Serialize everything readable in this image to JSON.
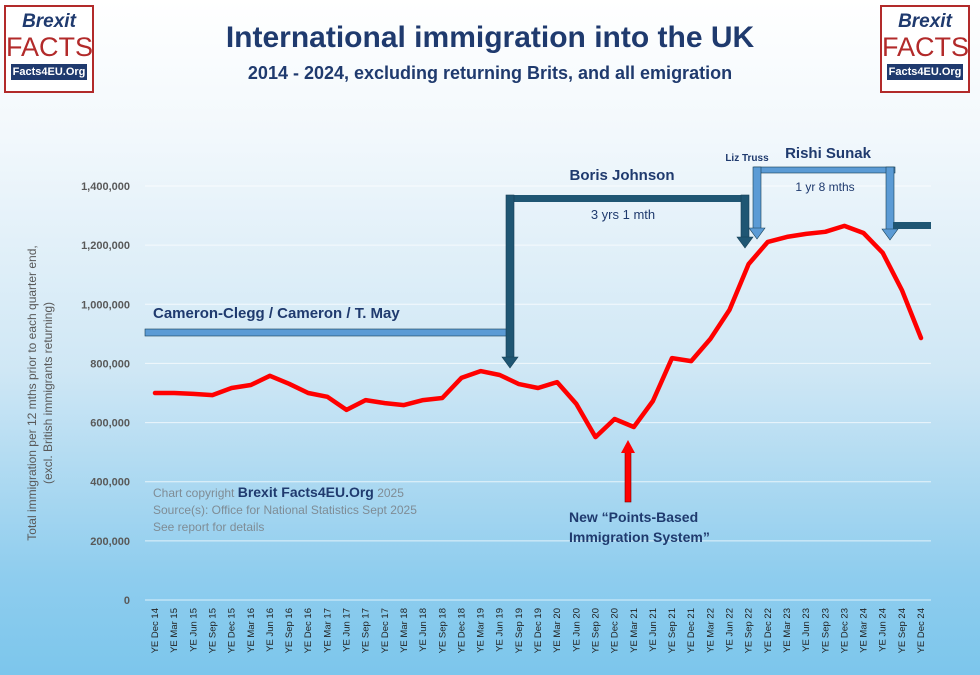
{
  "logo": {
    "line1": "Brexit",
    "line2": "FACTS",
    "line3": "Facts4EU.Org"
  },
  "colors": {
    "line": "#ff0000",
    "title": "#1f3a6e",
    "boris": "#1f5673",
    "sunak": "#5b9bd5"
  },
  "chart_data": {
    "type": "line",
    "title": "International immigration into the UK",
    "subtitle": "2014 - 2024, excluding returning Brits, and all emigration",
    "ylabel": "Total immigration per 12 mths prior to each quarter end,",
    "ylabel2": "(excl. British immigrants returning)",
    "xlabel": "",
    "ylim": [
      0,
      1400000
    ],
    "yticks": [
      "0",
      "200,000",
      "400,000",
      "600,000",
      "800,000",
      "1,000,000",
      "1,200,000",
      "1,400,000"
    ],
    "grid": true,
    "categories": [
      "YE Dec 14",
      "YE Mar 15",
      "YE Jun 15",
      "YE Sep 15",
      "YE Dec 15",
      "YE Mar 16",
      "YE Jun 16",
      "YE Sep 16",
      "YE Dec 16",
      "YE Mar 17",
      "YE Jun 17",
      "YE Sep 17",
      "YE Dec 17",
      "YE Mar 18",
      "YE Jun 18",
      "YE Sep 18",
      "YE Dec 18",
      "YE Mar 19",
      "YE Jun 19",
      "YE Sep 19",
      "YE Dec 19",
      "YE Mar 20",
      "YE Jun 20",
      "YE Sep 20",
      "YE Dec 20",
      "YE Mar 21",
      "YE Jun 21",
      "YE Sep 21",
      "YE Dec 21",
      "YE Mar 22",
      "YE Jun 22",
      "YE Sep 22",
      "YE Dec 22",
      "YE Mar 23",
      "YE Jun 23",
      "YE Sep 23",
      "YE Dec 23",
      "YE Mar 24",
      "YE Jun 24",
      "YE Sep 24",
      "YE Dec 24"
    ],
    "series": [
      {
        "name": "Immigration",
        "values": [
          700000,
          700000,
          697000,
          693000,
          717000,
          727000,
          758000,
          731000,
          700000,
          687000,
          643000,
          676000,
          666000,
          659000,
          676000,
          683000,
          751000,
          774000,
          761000,
          730000,
          717000,
          737000,
          663000,
          551000,
          612000,
          585000,
          673000,
          818000,
          808000,
          883000,
          981000,
          1136000,
          1211000,
          1228000,
          1238000,
          1245000,
          1265000,
          1241000,
          1174000,
          1048000,
          886000
        ]
      }
    ],
    "annotations": {
      "cameron": "Cameron-Clegg / Cameron / T. May",
      "boris": "Boris Johnson",
      "boris_duration": "3 yrs 1 mth",
      "truss": "Liz Truss",
      "sunak": "Rishi Sunak",
      "sunak_duration": "1 yr 8 mths",
      "pbs_line1": "New “Points-Based",
      "pbs_line2": "Immigration System”",
      "copyright_pre": "Chart copyright ",
      "copyright_brand": "Brexit Facts4EU.Org",
      "copyright_year": " 2025",
      "source": "Source(s): Office for National Statistics Sept 2025",
      "details": "See report for details"
    }
  }
}
